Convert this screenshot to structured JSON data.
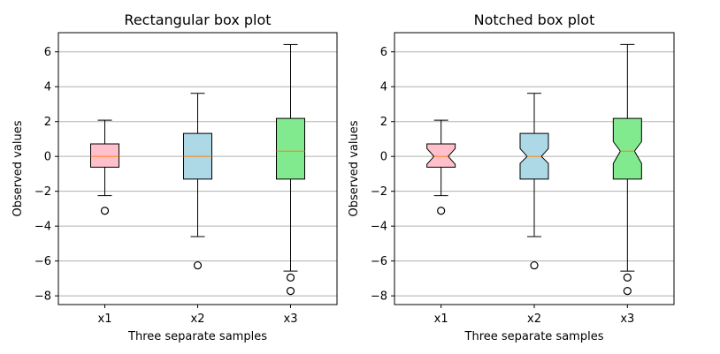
{
  "chart_data": [
    {
      "type": "box",
      "title": "Rectangular box plot",
      "xlabel": "Three separate samples",
      "ylabel": "Observed values",
      "categories": [
        "x1",
        "x2",
        "x3"
      ],
      "ylim": [
        -8.5,
        7.1
      ],
      "yticks": [
        6,
        4,
        2,
        0,
        -2,
        -4,
        -6,
        -8
      ],
      "ytick_labels": [
        "6",
        "4",
        "2",
        "0",
        "−2",
        "−4",
        "−6",
        "−8"
      ],
      "grid": "y",
      "notch": false,
      "boxes": [
        {
          "category": "x1",
          "whisker_low": -2.25,
          "q1": -0.62,
          "median": 0.0,
          "q3": 0.72,
          "whisker_high": 2.08,
          "fliers": [
            -3.12
          ],
          "color": "#ffc0cb"
        },
        {
          "category": "x2",
          "whisker_low": -4.6,
          "q1": -1.3,
          "median": 0.0,
          "q3": 1.32,
          "whisker_high": 3.62,
          "fliers": [
            -6.25
          ],
          "color": "#add8e6"
        },
        {
          "category": "x3",
          "whisker_low": -6.58,
          "q1": -1.3,
          "median": 0.3,
          "q3": 2.18,
          "whisker_high": 6.42,
          "fliers": [
            -6.95,
            -7.72
          ],
          "color": "#82ea8e"
        }
      ]
    },
    {
      "type": "box",
      "title": "Notched box plot",
      "xlabel": "Three separate samples",
      "ylabel": "Observed values",
      "categories": [
        "x1",
        "x2",
        "x3"
      ],
      "ylim": [
        -8.5,
        7.1
      ],
      "yticks": [
        6,
        4,
        2,
        0,
        -2,
        -4,
        -6,
        -8
      ],
      "ytick_labels": [
        "6",
        "4",
        "2",
        "0",
        "−2",
        "−4",
        "−6",
        "−8"
      ],
      "grid": "y",
      "notch": true,
      "boxes": [
        {
          "category": "x1",
          "whisker_low": -2.25,
          "q1": -0.62,
          "median": 0.0,
          "q3": 0.72,
          "whisker_high": 2.08,
          "fliers": [
            -3.12
          ],
          "notch_low": -0.45,
          "notch_high": 0.45,
          "color": "#ffc0cb"
        },
        {
          "category": "x2",
          "whisker_low": -4.6,
          "q1": -1.3,
          "median": 0.0,
          "q3": 1.32,
          "whisker_high": 3.62,
          "fliers": [
            -6.25
          ],
          "notch_low": -0.4,
          "notch_high": 0.45,
          "color": "#add8e6"
        },
        {
          "category": "x3",
          "whisker_low": -6.58,
          "q1": -1.3,
          "median": 0.3,
          "q3": 2.18,
          "whisker_high": 6.42,
          "fliers": [
            -6.95,
            -7.72
          ],
          "notch_low": -0.4,
          "notch_high": 0.85,
          "color": "#82ea8e"
        }
      ]
    }
  ],
  "style": {
    "median_color": "#ff7f0e",
    "grid_color": "#b0b0b0",
    "edge_color": "#000000"
  }
}
